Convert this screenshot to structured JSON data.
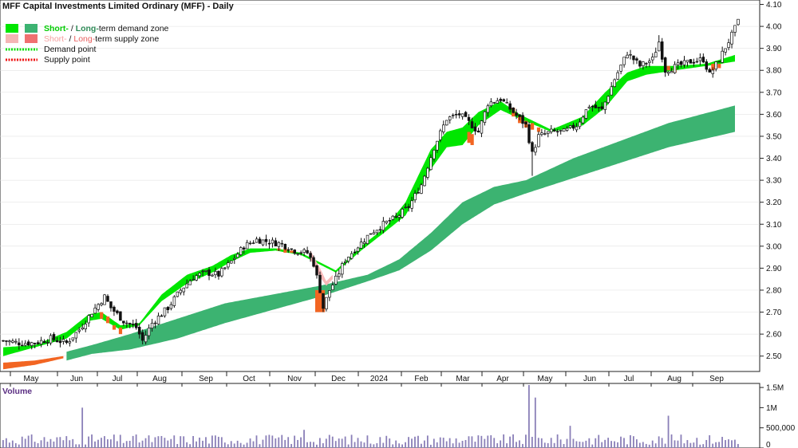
{
  "chart": {
    "title": "MFF Capital Investments Limited Ordinary (MFF) - Daily",
    "volume_title": "Volume"
  },
  "legend": [
    {
      "key": "demand-zone",
      "label_a": "Short-",
      "sep": " / ",
      "label_b": "Long-",
      "label_rest": "term demand zone",
      "color_a": "#00e600",
      "color_b": "#3cb371",
      "text_color_a": "#00cc00",
      "text_color_b": "#2e8b57"
    },
    {
      "key": "supply-zone",
      "label_a": "Short-",
      "sep": " / ",
      "label_b": "Long-",
      "label_rest": "term supply zone",
      "color_a": "#f5b5b5",
      "color_b": "#f07070",
      "text_color_a": "#f5a0a0",
      "text_color_b": "#e86060"
    },
    {
      "key": "demand-point",
      "label": "Demand point",
      "color": "#00dd00"
    },
    {
      "key": "supply-point",
      "label": "Supply point",
      "color": "#ee1111"
    }
  ],
  "colors": {
    "short_demand": "#00e600",
    "long_demand": "#3cb371",
    "short_supply": "#f7b8b8",
    "supply_orange": "#f26522",
    "candle": "#111111",
    "volume": "#8a7fb8",
    "grid": "#dddddd"
  },
  "chart_data": {
    "type": "candlestick",
    "x_labels": [
      "May",
      "Jun",
      "Jul",
      "Aug",
      "Sep",
      "Oct",
      "Nov",
      "Dec",
      "2024",
      "Feb",
      "Mar",
      "Apr",
      "May",
      "Jun",
      "Jul",
      "Aug",
      "Sep"
    ],
    "y_ticks": [
      2.5,
      2.6,
      2.7,
      2.8,
      2.9,
      3.0,
      3.1,
      3.2,
      3.3,
      3.4,
      3.5,
      3.6,
      3.7,
      3.8,
      3.9,
      4.0,
      4.1
    ],
    "y_tick_labels": [
      "2.50",
      "2.60",
      "2.70",
      "2.80",
      "2.90",
      "3.00",
      "3.10",
      "3.20",
      "3.30",
      "3.40",
      "3.50",
      "3.60",
      "3.70",
      "3.80",
      "3.90",
      "4.00",
      "4.10"
    ],
    "ylim": [
      2.43,
      4.12
    ],
    "volume_ticks": [
      0,
      500000,
      1000000,
      1500000
    ],
    "volume_tick_labels": [
      "0",
      "500,000",
      "1M",
      "1.5M"
    ],
    "volume_ylim": [
      0,
      1600000
    ],
    "close_path": [
      [
        0,
        2.57
      ],
      [
        5,
        2.56
      ],
      [
        10,
        2.56
      ],
      [
        15,
        2.58
      ],
      [
        20,
        2.56
      ],
      [
        24,
        2.62
      ],
      [
        28,
        2.7
      ],
      [
        32,
        2.77
      ],
      [
        34,
        2.72
      ],
      [
        38,
        2.66
      ],
      [
        42,
        2.63
      ],
      [
        44,
        2.57
      ],
      [
        47,
        2.65
      ],
      [
        52,
        2.72
      ],
      [
        56,
        2.8
      ],
      [
        60,
        2.86
      ],
      [
        64,
        2.88
      ],
      [
        68,
        2.87
      ],
      [
        72,
        2.93
      ],
      [
        76,
        3.0
      ],
      [
        80,
        3.03
      ],
      [
        84,
        3.02
      ],
      [
        88,
        3.01
      ],
      [
        92,
        2.98
      ],
      [
        96,
        2.97
      ],
      [
        98,
        2.92
      ],
      [
        100,
        2.8
      ],
      [
        101,
        2.72
      ],
      [
        103,
        2.8
      ],
      [
        105,
        2.85
      ],
      [
        108,
        2.94
      ],
      [
        112,
        3.0
      ],
      [
        116,
        3.06
      ],
      [
        120,
        3.1
      ],
      [
        124,
        3.13
      ],
      [
        128,
        3.18
      ],
      [
        132,
        3.28
      ],
      [
        136,
        3.45
      ],
      [
        140,
        3.58
      ],
      [
        144,
        3.6
      ],
      [
        148,
        3.55
      ],
      [
        150,
        3.52
      ],
      [
        153,
        3.65
      ],
      [
        157,
        3.67
      ],
      [
        161,
        3.61
      ],
      [
        165,
        3.55
      ],
      [
        167,
        3.42
      ],
      [
        169,
        3.5
      ],
      [
        173,
        3.52
      ],
      [
        177,
        3.52
      ],
      [
        181,
        3.55
      ],
      [
        185,
        3.64
      ],
      [
        189,
        3.62
      ],
      [
        193,
        3.76
      ],
      [
        197,
        3.88
      ],
      [
        201,
        3.82
      ],
      [
        205,
        3.85
      ],
      [
        207,
        3.93
      ],
      [
        209,
        3.8
      ],
      [
        213,
        3.82
      ],
      [
        217,
        3.84
      ],
      [
        221,
        3.85
      ],
      [
        223,
        3.78
      ],
      [
        226,
        3.85
      ],
      [
        230,
        3.96
      ],
      [
        232,
        4.02
      ]
    ],
    "short_demand_band": [
      [
        0,
        2.5,
        2.54
      ],
      [
        10,
        2.54,
        2.55
      ],
      [
        20,
        2.58,
        2.61
      ],
      [
        27,
        2.66,
        2.69
      ],
      [
        31,
        2.67,
        2.7
      ],
      [
        37,
        2.62,
        2.64
      ],
      [
        43,
        2.64,
        2.65
      ],
      [
        50,
        2.75,
        2.78
      ],
      [
        58,
        2.83,
        2.87
      ],
      [
        66,
        2.88,
        2.91
      ],
      [
        72,
        2.93,
        2.96
      ],
      [
        78,
        2.97,
        2.99
      ],
      [
        86,
        2.98,
        2.99
      ],
      [
        94,
        2.96,
        2.97
      ],
      [
        105,
        2.88,
        2.89
      ],
      [
        113,
        2.98,
        3.0
      ],
      [
        121,
        3.07,
        3.09
      ],
      [
        127,
        3.14,
        3.2
      ],
      [
        135,
        3.35,
        3.44
      ],
      [
        140,
        3.45,
        3.52
      ],
      [
        145,
        3.46,
        3.54
      ],
      [
        150,
        3.55,
        3.61
      ],
      [
        157,
        3.62,
        3.66
      ],
      [
        163,
        3.58,
        3.6
      ],
      [
        173,
        3.52,
        3.53
      ],
      [
        183,
        3.55,
        3.59
      ],
      [
        190,
        3.63,
        3.7
      ],
      [
        197,
        3.75,
        3.79
      ],
      [
        203,
        3.78,
        3.82
      ],
      [
        212,
        3.8,
        3.82
      ],
      [
        222,
        3.82,
        3.83
      ],
      [
        231,
        3.84,
        3.87
      ]
    ],
    "long_demand_band": [
      [
        20,
        2.48,
        2.52
      ],
      [
        28,
        2.51,
        2.55
      ],
      [
        40,
        2.53,
        2.6
      ],
      [
        55,
        2.58,
        2.67
      ],
      [
        70,
        2.65,
        2.74
      ],
      [
        85,
        2.71,
        2.78
      ],
      [
        100,
        2.77,
        2.82
      ],
      [
        115,
        2.84,
        2.87
      ],
      [
        125,
        2.89,
        2.94
      ],
      [
        135,
        2.98,
        3.06
      ],
      [
        145,
        3.1,
        3.2
      ],
      [
        155,
        3.19,
        3.27
      ],
      [
        165,
        3.24,
        3.3
      ],
      [
        180,
        3.31,
        3.4
      ],
      [
        195,
        3.38,
        3.48
      ],
      [
        210,
        3.45,
        3.56
      ],
      [
        231,
        3.52,
        3.64
      ]
    ],
    "supply_pink_band": [
      [
        97,
        2.94,
        2.98
      ],
      [
        100,
        2.86,
        2.9
      ],
      [
        102,
        2.82,
        2.84
      ],
      [
        104,
        2.85,
        2.87
      ]
    ],
    "supply_orange_band": [
      [
        0,
        2.44,
        2.47
      ],
      [
        10,
        2.46,
        2.48
      ],
      [
        19,
        2.49,
        2.5
      ]
    ],
    "supply_orange_segments": [
      [
        31,
        2.67,
        2.7
      ],
      [
        33,
        2.65,
        2.68
      ],
      [
        35,
        2.62,
        2.64
      ],
      [
        37,
        2.6,
        2.63
      ],
      [
        87,
        2.98,
        2.99
      ],
      [
        89,
        2.97,
        2.99
      ],
      [
        91,
        2.97,
        2.98
      ],
      [
        99,
        2.7,
        2.8
      ],
      [
        100,
        2.7,
        2.8
      ],
      [
        101,
        2.7,
        2.8
      ],
      [
        147,
        3.47,
        3.52
      ],
      [
        148,
        3.46,
        3.51
      ],
      [
        161,
        3.59,
        3.63
      ],
      [
        163,
        3.56,
        3.59
      ],
      [
        165,
        3.54,
        3.57
      ],
      [
        167,
        3.53,
        3.56
      ],
      [
        169,
        3.52,
        3.54
      ],
      [
        210,
        3.8,
        3.82
      ],
      [
        212,
        3.79,
        3.81
      ],
      [
        224,
        3.8,
        3.83
      ],
      [
        226,
        3.81,
        3.83
      ]
    ],
    "volume_spikes": [
      [
        25,
        1000000
      ],
      [
        166,
        1560000
      ],
      [
        168,
        1250000
      ],
      [
        210,
        800000
      ],
      [
        179,
        550000
      ],
      [
        95,
        450000
      ]
    ]
  }
}
